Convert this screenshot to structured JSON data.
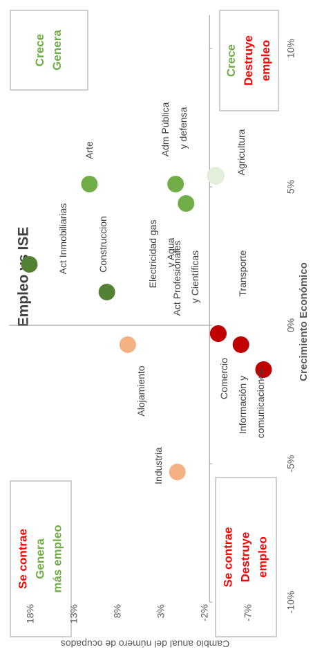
{
  "chart_data": {
    "type": "scatter",
    "title": "Empleo vs ISE",
    "x_label": "Crecimiento Económico",
    "y_label": "Cambio anual del número de ocupados",
    "xlim": [
      -10,
      11.2
    ],
    "ylim": [
      -9.5,
      20.5
    ],
    "xaxis_crosses_y": -2.5,
    "xticks": [
      {
        "value": -10,
        "label": "-10%"
      },
      {
        "value": -5,
        "label": "-5%"
      },
      {
        "value": 0,
        "label": "0%"
      },
      {
        "value": 5,
        "label": "5%"
      },
      {
        "value": 10,
        "label": "10%"
      }
    ],
    "yticks": [
      {
        "value": -7,
        "label": "-7%"
      },
      {
        "value": -2,
        "label": "-2%"
      },
      {
        "value": 3,
        "label": "3%"
      },
      {
        "value": 8,
        "label": "8%"
      },
      {
        "value": 13,
        "label": "13%"
      },
      {
        "value": 18,
        "label": "18%"
      }
    ],
    "series": [
      {
        "name": "Act Inmobiliarias",
        "color": "#548235",
        "x": [
          2.2
        ],
        "values": [
          18.2
        ]
      },
      {
        "name": "Construccion",
        "color": "#548235",
        "x": [
          1.2
        ],
        "values": [
          9.3
        ]
      },
      {
        "name": "Alojamiento",
        "color": "#f4b183",
        "x": [
          -0.7
        ],
        "values": [
          6.9
        ]
      },
      {
        "name": "Industria",
        "color": "#f4b183",
        "x": [
          -5.3
        ],
        "values": [
          1.2
        ]
      },
      {
        "name": "Arte",
        "color": "#70ad47",
        "x": [
          5.1
        ],
        "values": [
          11.3
        ]
      },
      {
        "name": "Adm Pública y defensa",
        "color": "#70ad47",
        "x": [
          5.1
        ],
        "values": [
          1.4
        ]
      },
      {
        "name": "Electricidad gas y Agua",
        "color": "#70ad47",
        "x": [
          4.4
        ],
        "values": [
          0.2
        ]
      },
      {
        "name": "Agricultura",
        "color": "#e2efda",
        "x": [
          5.4
        ],
        "values": [
          -3.2
        ]
      },
      {
        "name": "Act Profesionales y Científicas",
        "color": "#c00000",
        "x": [
          -0.3
        ],
        "values": [
          -3.5
        ]
      },
      {
        "name": "Comercio",
        "color": "#c00000",
        "x": [
          -0.3
        ],
        "values": [
          -3.5
        ]
      },
      {
        "name": "Transporte",
        "color": "#c00000",
        "x": [
          -0.7
        ],
        "values": [
          -6.1
        ]
      },
      {
        "name": "Información y comunicaciones",
        "color": "#c00000",
        "x": [
          -1.6
        ],
        "values": [
          -8.7
        ]
      }
    ],
    "quadrants": [
      {
        "lines": [
          {
            "text": "Se contrae",
            "color": "#ff0000"
          },
          {
            "text": "Genera",
            "color": "#70ad47"
          },
          {
            "text": "más empleo",
            "color": "#70ad47"
          }
        ]
      },
      {
        "lines": [
          {
            "text": "Se contrae",
            "color": "#ff0000"
          },
          {
            "text": "Destruye",
            "color": "#ff0000"
          },
          {
            "text": "empleo",
            "color": "#ff0000"
          }
        ]
      },
      {
        "lines": [
          {
            "text": "Crece",
            "color": "#70ad47"
          },
          {
            "text": "Genera",
            "color": "#70ad47"
          }
        ]
      },
      {
        "lines": [
          {
            "text": "Crece",
            "color": "#70ad47"
          },
          {
            "text": "Destruye",
            "color": "#ff0000"
          },
          {
            "text": "empleo",
            "color": "#ff0000"
          }
        ]
      }
    ]
  }
}
